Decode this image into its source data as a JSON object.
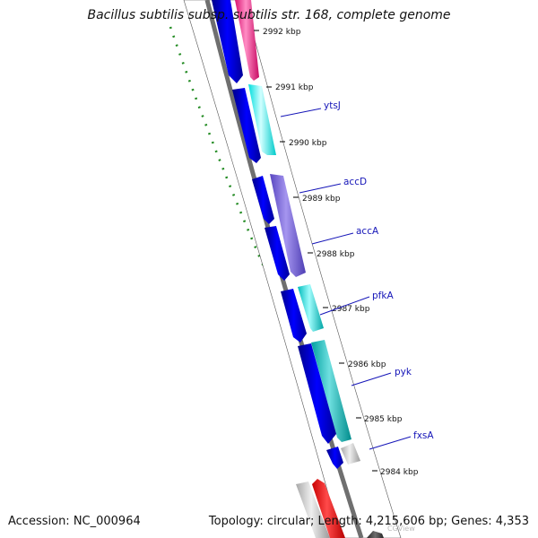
{
  "title": "Bacillus subtilis subsp. subtilis str. 168, complete genome",
  "footer": {
    "accession": "Accession: NC_000964",
    "summary": "Topology: circular; Length: 4,215,606 bp; Genes: 4,353"
  },
  "watermark": "CGView",
  "colors": {
    "strand_forward": "#0000ee",
    "backbone": "#808080",
    "gc_skew": "#228b22",
    "label_line": "#1515b8"
  },
  "tick_labels": [
    "2992 kbp",
    "2991 kbp",
    "2990 kbp",
    "2989 kbp",
    "2988 kbp",
    "2987 kbp",
    "2986 kbp",
    "2985 kbp",
    "2984 kbp"
  ],
  "gene_labels": [
    {
      "id": "ytsJ",
      "text": "ytsJ"
    },
    {
      "id": "accD",
      "text": "accD"
    },
    {
      "id": "accA",
      "text": "accA"
    },
    {
      "id": "pfkA",
      "text": "pfkA"
    },
    {
      "id": "pyk",
      "text": "pyk"
    },
    {
      "id": "fxsA",
      "text": "fxsA"
    }
  ]
}
